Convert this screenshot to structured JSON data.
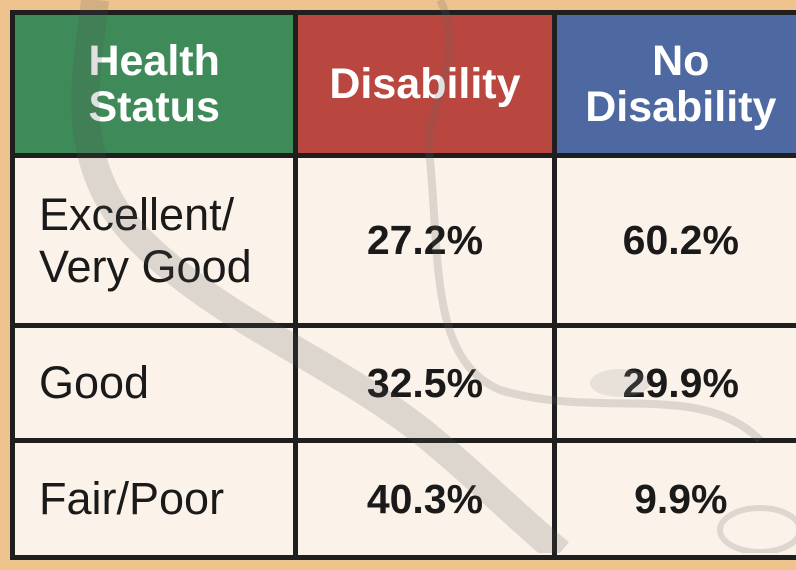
{
  "table": {
    "header": [
      "Health\nStatus",
      "Disability",
      "No\nDisability"
    ],
    "rows": [
      [
        "Excellent/\nVery Good",
        "27.2%",
        "60.2%"
      ],
      [
        "Good",
        "32.5%",
        "29.9%"
      ],
      [
        "Fair/Poor",
        "40.3%",
        "9.9%"
      ]
    ]
  }
}
